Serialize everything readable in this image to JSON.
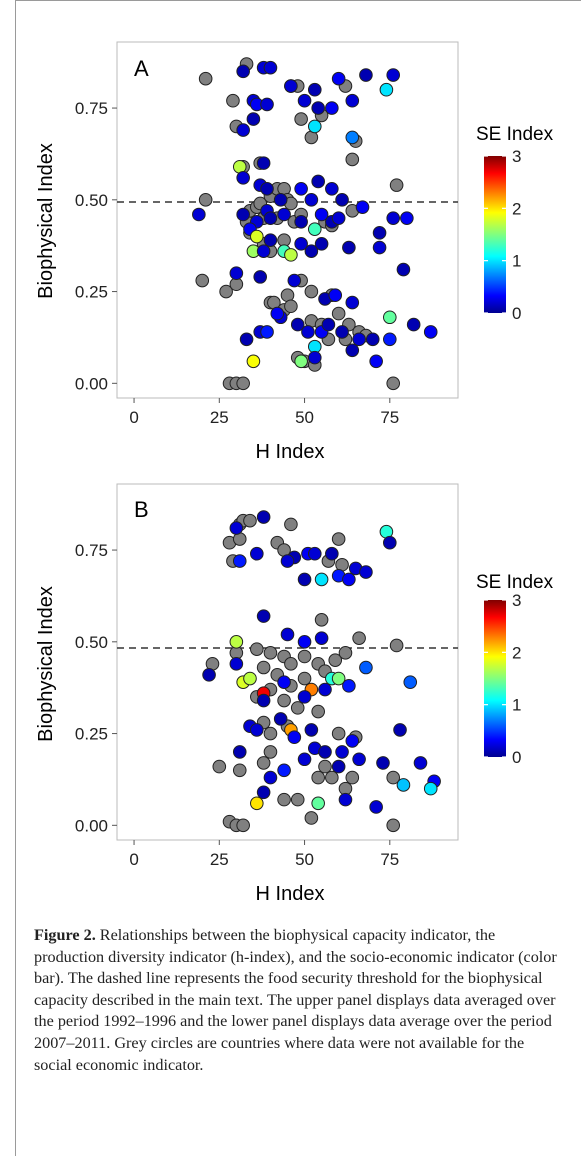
{
  "figure": {
    "caption_label": "Figure 2.",
    "caption_text": " Relationships between the biophysical capacity indicator, the production diversity indicator (h-index), and the socio-economic indicator (color bar). The dashed line represents the food security threshold for the biophysical capacity described in the main text. The upper panel displays data averaged over the period 1992–1996 and the lower panel displays data average over the period 2007–2011. Grey circles are countries where data were not available for the social economic indicator."
  },
  "colors": {
    "na_grey": "#808080",
    "dashed_line": "#333333",
    "panel_border": "#bbbbbb"
  },
  "chart_data": [
    {
      "type": "scatter",
      "panel_label": "A",
      "xlabel": "H Index",
      "ylabel": "Biophysical Index",
      "xlim": [
        -5,
        95
      ],
      "ylim": [
        -0.04,
        0.93
      ],
      "xticks": [
        0,
        25,
        50,
        75
      ],
      "xtick_labels": [
        "0",
        "25",
        "50",
        "75"
      ],
      "yticks": [
        0.0,
        0.25,
        0.5,
        0.75
      ],
      "ytick_labels": [
        "0.00",
        "0.25",
        "0.50",
        "0.75"
      ],
      "threshold_y": 0.5,
      "colorbar": {
        "title": "SE Index",
        "min": 0,
        "max": 3,
        "ticks": [
          0,
          1,
          2,
          3
        ],
        "tick_labels": [
          "0",
          "1",
          "2",
          "3"
        ]
      },
      "grey_points": [
        [
          21,
          0.83
        ],
        [
          33,
          0.87
        ],
        [
          29,
          0.77
        ],
        [
          30,
          0.7
        ],
        [
          46,
          0.81
        ],
        [
          48,
          0.81
        ],
        [
          49,
          0.72
        ],
        [
          55,
          0.73
        ],
        [
          52,
          0.67
        ],
        [
          62,
          0.81
        ],
        [
          65,
          0.66
        ],
        [
          64,
          0.61
        ],
        [
          32,
          0.59
        ],
        [
          37,
          0.6
        ],
        [
          33,
          0.44
        ],
        [
          34,
          0.47
        ],
        [
          36,
          0.48
        ],
        [
          37,
          0.49
        ],
        [
          40,
          0.51
        ],
        [
          42,
          0.53
        ],
        [
          44,
          0.53
        ],
        [
          45,
          0.5
        ],
        [
          46,
          0.49
        ],
        [
          38,
          0.45
        ],
        [
          42,
          0.45
        ],
        [
          47,
          0.44
        ],
        [
          49,
          0.46
        ],
        [
          34,
          0.41
        ],
        [
          38,
          0.38
        ],
        [
          40,
          0.36
        ],
        [
          44,
          0.39
        ],
        [
          56,
          0.44
        ],
        [
          58,
          0.43
        ],
        [
          64,
          0.47
        ],
        [
          77,
          0.54
        ],
        [
          21,
          0.5
        ],
        [
          20,
          0.28
        ],
        [
          27,
          0.25
        ],
        [
          30,
          0.27
        ],
        [
          40,
          0.22
        ],
        [
          41,
          0.22
        ],
        [
          45,
          0.24
        ],
        [
          49,
          0.28
        ],
        [
          52,
          0.25
        ],
        [
          58,
          0.24
        ],
        [
          44,
          0.2
        ],
        [
          46,
          0.21
        ],
        [
          52,
          0.17
        ],
        [
          55,
          0.16
        ],
        [
          60,
          0.19
        ],
        [
          63,
          0.16
        ],
        [
          66,
          0.14
        ],
        [
          68,
          0.13
        ],
        [
          57,
          0.12
        ],
        [
          62,
          0.12
        ],
        [
          48,
          0.07
        ],
        [
          50,
          0.06
        ],
        [
          53,
          0.05
        ],
        [
          28,
          0.0
        ],
        [
          30,
          0.0
        ],
        [
          32,
          0.0
        ],
        [
          76,
          0.0
        ]
      ],
      "points": [
        [
          32,
          0.85,
          0.1
        ],
        [
          38,
          0.86,
          0.2
        ],
        [
          40,
          0.86,
          0.2
        ],
        [
          46,
          0.81,
          0.2
        ],
        [
          53,
          0.8,
          0.1
        ],
        [
          60,
          0.83,
          0.3
        ],
        [
          68,
          0.84,
          0.1
        ],
        [
          76,
          0.84,
          0.2
        ],
        [
          74,
          0.8,
          1.0
        ],
        [
          35,
          0.77,
          0.2
        ],
        [
          36,
          0.76,
          0.3
        ],
        [
          39,
          0.76,
          0.2
        ],
        [
          50,
          0.77,
          0.2
        ],
        [
          54,
          0.75,
          0.1
        ],
        [
          58,
          0.75,
          0.3
        ],
        [
          64,
          0.77,
          0.2
        ],
        [
          53,
          0.7,
          1.0
        ],
        [
          64,
          0.67,
          0.7
        ],
        [
          35,
          0.72,
          0.1
        ],
        [
          32,
          0.69,
          0.2
        ],
        [
          31,
          0.59,
          1.7
        ],
        [
          32,
          0.56,
          0.2
        ],
        [
          38,
          0.6,
          0.1
        ],
        [
          37,
          0.54,
          0.2
        ],
        [
          39,
          0.53,
          0.1
        ],
        [
          39,
          0.47,
          0.2
        ],
        [
          43,
          0.5,
          0.1
        ],
        [
          49,
          0.53,
          0.3
        ],
        [
          52,
          0.5,
          0.2
        ],
        [
          54,
          0.55,
          0.1
        ],
        [
          58,
          0.53,
          0.2
        ],
        [
          61,
          0.5,
          0.1
        ],
        [
          67,
          0.48,
          0.3
        ],
        [
          19,
          0.46,
          0.2
        ],
        [
          32,
          0.46,
          0.1
        ],
        [
          36,
          0.44,
          0.2
        ],
        [
          40,
          0.45,
          0.1
        ],
        [
          44,
          0.46,
          0.2
        ],
        [
          49,
          0.44,
          0.1
        ],
        [
          53,
          0.42,
          1.3
        ],
        [
          55,
          0.46,
          0.3
        ],
        [
          58,
          0.44,
          0.1
        ],
        [
          60,
          0.45,
          0.2
        ],
        [
          72,
          0.41,
          0.1
        ],
        [
          76,
          0.45,
          0.2
        ],
        [
          80,
          0.45,
          0.3
        ],
        [
          34,
          0.42,
          0.3
        ],
        [
          36,
          0.4,
          1.8
        ],
        [
          35,
          0.36,
          1.6
        ],
        [
          38,
          0.36,
          0.2
        ],
        [
          40,
          0.39,
          0.1
        ],
        [
          44,
          0.36,
          1.3
        ],
        [
          46,
          0.35,
          1.7
        ],
        [
          49,
          0.38,
          0.2
        ],
        [
          52,
          0.36,
          0.1
        ],
        [
          55,
          0.38,
          0.1
        ],
        [
          63,
          0.37,
          0.1
        ],
        [
          72,
          0.37,
          0.2
        ],
        [
          79,
          0.31,
          0.1
        ],
        [
          30,
          0.3,
          0.2
        ],
        [
          37,
          0.29,
          0.1
        ],
        [
          47,
          0.28,
          0.2
        ],
        [
          56,
          0.23,
          0.1
        ],
        [
          59,
          0.24,
          0.3
        ],
        [
          64,
          0.22,
          0.2
        ],
        [
          37,
          0.14,
          0.2
        ],
        [
          39,
          0.14,
          0.4
        ],
        [
          43,
          0.18,
          0.2
        ],
        [
          48,
          0.16,
          0.1
        ],
        [
          51,
          0.14,
          0.2
        ],
        [
          55,
          0.14,
          0.3
        ],
        [
          57,
          0.16,
          0.1
        ],
        [
          61,
          0.14,
          0.1
        ],
        [
          66,
          0.12,
          0.2
        ],
        [
          70,
          0.12,
          0.1
        ],
        [
          75,
          0.18,
          1.4
        ],
        [
          75,
          0.12,
          0.4
        ],
        [
          82,
          0.16,
          0.1
        ],
        [
          87,
          0.14,
          0.3
        ],
        [
          33,
          0.12,
          0.1
        ],
        [
          42,
          0.19,
          0.3
        ],
        [
          35,
          0.06,
          1.9
        ],
        [
          49,
          0.06,
          1.5
        ],
        [
          53,
          0.1,
          1.0
        ],
        [
          53,
          0.07,
          0.2
        ],
        [
          64,
          0.09,
          0.1
        ],
        [
          71,
          0.06,
          0.3
        ]
      ]
    },
    {
      "type": "scatter",
      "panel_label": "B",
      "xlabel": "H Index",
      "ylabel": "Biophysical Index",
      "xlim": [
        -5,
        95
      ],
      "ylim": [
        -0.04,
        0.93
      ],
      "xticks": [
        0,
        25,
        50,
        75
      ],
      "xtick_labels": [
        "0",
        "25",
        "50",
        "75"
      ],
      "yticks": [
        0.0,
        0.25,
        0.5,
        0.75
      ],
      "ytick_labels": [
        "0.00",
        "0.25",
        "0.50",
        "0.75"
      ],
      "threshold_y": 0.5,
      "colorbar": {
        "title": "SE Index",
        "min": 0,
        "max": 3,
        "ticks": [
          0,
          1,
          2,
          3
        ],
        "tick_labels": [
          "0",
          "1",
          "2",
          "3"
        ]
      },
      "grey_points": [
        [
          31,
          0.82
        ],
        [
          32,
          0.83
        ],
        [
          34,
          0.83
        ],
        [
          46,
          0.82
        ],
        [
          28,
          0.77
        ],
        [
          31,
          0.78
        ],
        [
          42,
          0.77
        ],
        [
          44,
          0.75
        ],
        [
          57,
          0.72
        ],
        [
          60,
          0.78
        ],
        [
          61,
          0.71
        ],
        [
          29,
          0.72
        ],
        [
          55,
          0.56
        ],
        [
          23,
          0.44
        ],
        [
          30,
          0.47
        ],
        [
          36,
          0.48
        ],
        [
          40,
          0.47
        ],
        [
          44,
          0.46
        ],
        [
          46,
          0.44
        ],
        [
          50,
          0.46
        ],
        [
          54,
          0.44
        ],
        [
          59,
          0.45
        ],
        [
          62,
          0.47
        ],
        [
          66,
          0.51
        ],
        [
          77,
          0.49
        ],
        [
          38,
          0.43
        ],
        [
          42,
          0.41
        ],
        [
          46,
          0.38
        ],
        [
          50,
          0.4
        ],
        [
          56,
          0.42
        ],
        [
          36,
          0.35
        ],
        [
          40,
          0.37
        ],
        [
          44,
          0.34
        ],
        [
          48,
          0.32
        ],
        [
          38,
          0.28
        ],
        [
          40,
          0.25
        ],
        [
          45,
          0.27
        ],
        [
          54,
          0.31
        ],
        [
          60,
          0.25
        ],
        [
          65,
          0.24
        ],
        [
          25,
          0.16
        ],
        [
          31,
          0.15
        ],
        [
          38,
          0.17
        ],
        [
          40,
          0.2
        ],
        [
          56,
          0.16
        ],
        [
          58,
          0.13
        ],
        [
          62,
          0.1
        ],
        [
          64,
          0.13
        ],
        [
          76,
          0.13
        ],
        [
          54,
          0.13
        ],
        [
          44,
          0.07
        ],
        [
          48,
          0.07
        ],
        [
          52,
          0.02
        ],
        [
          28,
          0.01
        ],
        [
          30,
          0.0
        ],
        [
          32,
          0.0
        ],
        [
          76,
          0.0
        ]
      ],
      "points": [
        [
          30,
          0.81,
          0.2
        ],
        [
          38,
          0.84,
          0.1
        ],
        [
          36,
          0.74,
          0.2
        ],
        [
          47,
          0.73,
          0.1
        ],
        [
          51,
          0.74,
          0.3
        ],
        [
          53,
          0.74,
          0.2
        ],
        [
          58,
          0.74,
          0.1
        ],
        [
          65,
          0.7,
          0.2
        ],
        [
          68,
          0.69,
          0.2
        ],
        [
          74,
          0.8,
          1.2
        ],
        [
          75,
          0.77,
          0.1
        ],
        [
          45,
          0.72,
          0.2
        ],
        [
          50,
          0.67,
          0.1
        ],
        [
          55,
          0.67,
          1.0
        ],
        [
          60,
          0.68,
          0.4
        ],
        [
          63,
          0.67,
          0.3
        ],
        [
          31,
          0.72,
          0.4
        ],
        [
          30,
          0.44,
          0.2
        ],
        [
          22,
          0.41,
          0.1
        ],
        [
          30,
          0.5,
          1.7
        ],
        [
          38,
          0.57,
          0.1
        ],
        [
          45,
          0.52,
          0.2
        ],
        [
          50,
          0.5,
          0.3
        ],
        [
          55,
          0.51,
          0.2
        ],
        [
          32,
          0.39,
          1.8
        ],
        [
          34,
          0.4,
          1.7
        ],
        [
          38,
          0.36,
          2.7
        ],
        [
          44,
          0.39,
          0.3
        ],
        [
          52,
          0.37,
          2.3
        ],
        [
          56,
          0.37,
          0.2
        ],
        [
          58,
          0.4,
          1.2
        ],
        [
          60,
          0.4,
          1.5
        ],
        [
          63,
          0.38,
          0.4
        ],
        [
          68,
          0.43,
          0.6
        ],
        [
          81,
          0.39,
          0.6
        ],
        [
          46,
          0.26,
          2.2
        ],
        [
          43,
          0.29,
          0.1
        ],
        [
          50,
          0.35,
          0.2
        ],
        [
          38,
          0.34,
          0.1
        ],
        [
          34,
          0.27,
          0.2
        ],
        [
          31,
          0.2,
          0.1
        ],
        [
          36,
          0.26,
          0.2
        ],
        [
          40,
          0.13,
          0.2
        ],
        [
          44,
          0.15,
          0.4
        ],
        [
          47,
          0.24,
          0.3
        ],
        [
          50,
          0.18,
          0.2
        ],
        [
          52,
          0.26,
          0.1
        ],
        [
          53,
          0.21,
          0.2
        ],
        [
          56,
          0.2,
          0.1
        ],
        [
          61,
          0.2,
          0.2
        ],
        [
          64,
          0.23,
          0.3
        ],
        [
          60,
          0.16,
          0.1
        ],
        [
          66,
          0.18,
          0.2
        ],
        [
          73,
          0.17,
          0.1
        ],
        [
          78,
          0.26,
          0.1
        ],
        [
          84,
          0.17,
          0.2
        ],
        [
          88,
          0.12,
          0.3
        ],
        [
          36,
          0.06,
          2.0
        ],
        [
          38,
          0.09,
          0.1
        ],
        [
          54,
          0.06,
          1.4
        ],
        [
          62,
          0.07,
          0.2
        ],
        [
          71,
          0.05,
          0.2
        ],
        [
          79,
          0.11,
          0.9
        ],
        [
          87,
          0.1,
          1.0
        ]
      ]
    }
  ]
}
